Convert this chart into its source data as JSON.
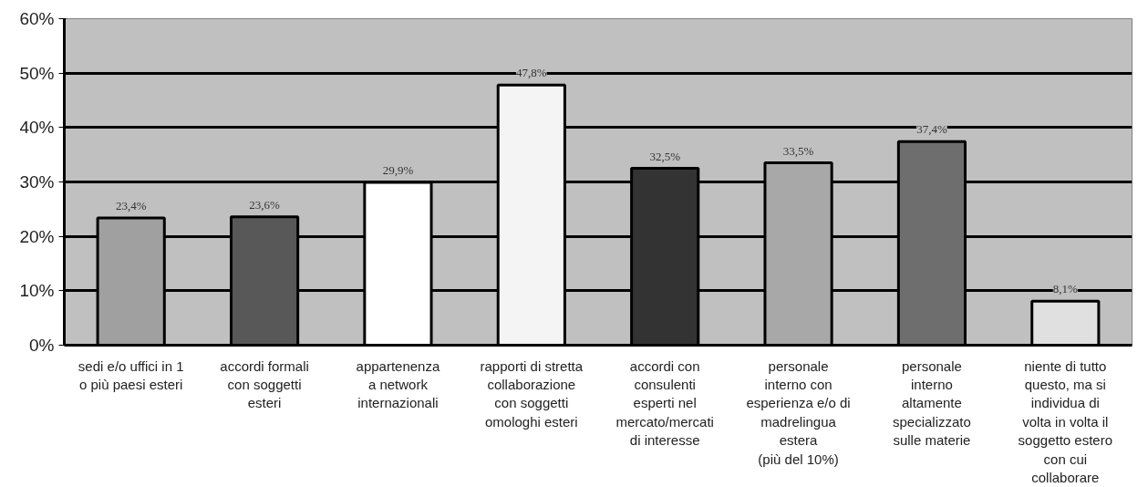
{
  "chart_data": {
    "type": "bar",
    "categories": [
      "sedi e/o uffici in 1\no più paesi esteri",
      "accordi formali\ncon soggetti\nesteri",
      "appartenenza\na network\ninternazionali",
      "rapporti di stretta\ncollaborazione\ncon soggetti\nomologhi esteri",
      "accordi con\nconsulenti\nesperti nel\nmercato/mercati\ndi interesse",
      "personale\ninterno con\nesperienza e/o di\nmadrelingua\nestera\n(più del 10%)",
      "personale\ninterno\naltamente\nspecializzato\nsulle materie",
      "niente di tutto\nquesto, ma si\nindividua di\nvolta in volta il\nsoggetto estero\ncon cui\ncollaborare"
    ],
    "values": [
      23.4,
      23.6,
      29.9,
      47.8,
      32.5,
      33.5,
      37.4,
      8.1
    ],
    "value_labels": [
      "23,4%",
      "23,6%",
      "29,9%",
      "47,8%",
      "32,5%",
      "33,5%",
      "37,4%",
      "8,1%"
    ],
    "colors": [
      "#a0a0a0",
      "#585858",
      "#ffffff",
      "#f4f4f4",
      "#333333",
      "#a8a8a8",
      "#6e6e6e",
      "#e0e0e0"
    ],
    "ylim": [
      0,
      60
    ],
    "yticks": [
      {
        "value": 0,
        "label": "0%"
      },
      {
        "value": 10,
        "label": "10%"
      },
      {
        "value": 20,
        "label": "20%"
      },
      {
        "value": 30,
        "label": "30%"
      },
      {
        "value": 40,
        "label": "40%"
      },
      {
        "value": 50,
        "label": "50%"
      },
      {
        "value": 60,
        "label": "60%"
      }
    ],
    "grid": "y"
  }
}
